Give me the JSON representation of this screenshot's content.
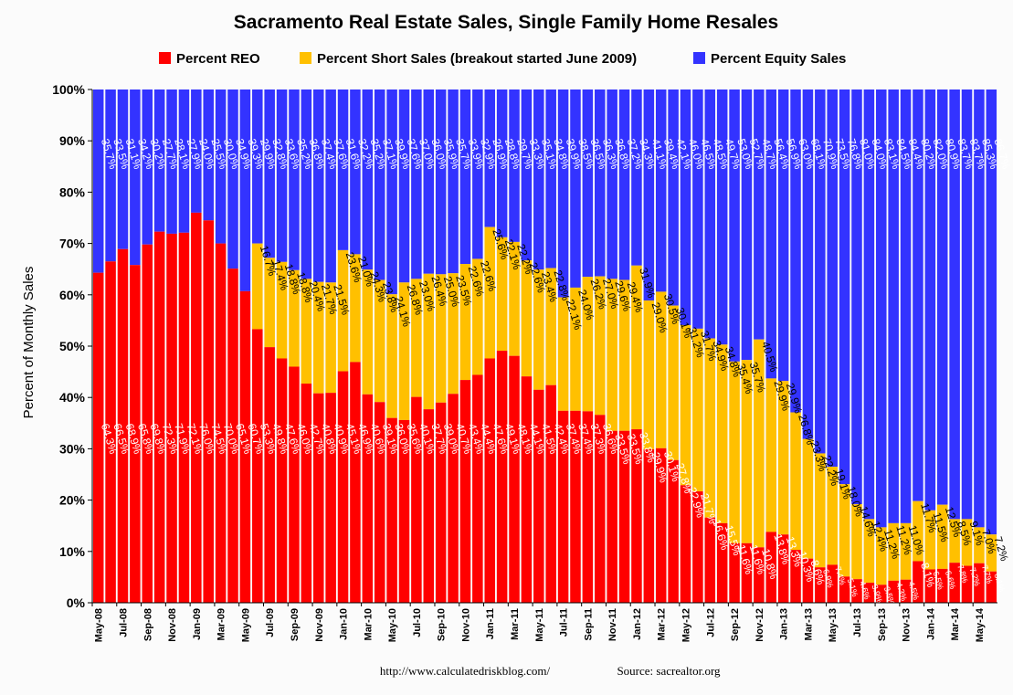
{
  "chart_data": {
    "type": "bar",
    "stacked": true,
    "title": "Sacramento Real Estate Sales, Single Family Home Resales",
    "ylabel": "Percent of Monthly Sales",
    "xlabel": "",
    "ylim": [
      0,
      100
    ],
    "yticks": [
      "0%",
      "10%",
      "20%",
      "30%",
      "40%",
      "50%",
      "60%",
      "70%",
      "80%",
      "90%",
      "100%"
    ],
    "legend_position": "top",
    "footer": {
      "url": "http://www.calculatedriskblog.com/",
      "source": "Source: sacrealtor.org"
    },
    "colors": {
      "reo": "#ff0000",
      "short": "#ffc000",
      "equity": "#3333ff"
    },
    "x_tick_labels": [
      "May-08",
      "Jul-08",
      "Sep-08",
      "Nov-08",
      "Jan-09",
      "Mar-09",
      "May-09",
      "Jul-09",
      "Sep-09",
      "Nov-09",
      "Jan-10",
      "Mar-10",
      "May-10",
      "Jul-10",
      "Sep-10",
      "Nov-10",
      "Jan-11",
      "Mar-11",
      "May-11",
      "Jul-11",
      "Sep-11",
      "Nov-11",
      "Jan-12",
      "Mar-12",
      "May-12",
      "Jul-12",
      "Sep-12",
      "Nov-12",
      "Jan-13",
      "Mar-13",
      "May-13",
      "Jul-13",
      "Sep-13",
      "Nov-13",
      "Jan-14",
      "Mar-14",
      "May-14"
    ],
    "categories": [
      "May-08",
      "Jun-08",
      "Jul-08",
      "Aug-08",
      "Sep-08",
      "Oct-08",
      "Nov-08",
      "Dec-08",
      "Jan-09",
      "Feb-09",
      "Mar-09",
      "Apr-09",
      "May-09",
      "Jun-09",
      "Jul-09",
      "Aug-09",
      "Sep-09",
      "Oct-09",
      "Nov-09",
      "Dec-09",
      "Jan-10",
      "Feb-10",
      "Mar-10",
      "Apr-10",
      "May-10",
      "Jun-10",
      "Jul-10",
      "Aug-10",
      "Sep-10",
      "Oct-10",
      "Nov-10",
      "Dec-10",
      "Jan-11",
      "Feb-11",
      "Mar-11",
      "Apr-11",
      "May-11",
      "Jun-11",
      "Jul-11",
      "Aug-11",
      "Sep-11",
      "Oct-11",
      "Nov-11",
      "Dec-11",
      "Jan-12",
      "Feb-12",
      "Mar-12",
      "Apr-12",
      "May-12",
      "Jun-12",
      "Jul-12",
      "Aug-12",
      "Sep-12",
      "Oct-12",
      "Nov-12",
      "Dec-12",
      "Jan-13",
      "Feb-13",
      "Mar-13",
      "Apr-13",
      "May-13",
      "Jun-13",
      "Jul-13",
      "Aug-13",
      "Sep-13",
      "Oct-13",
      "Nov-13",
      "Dec-13",
      "Jan-14",
      "Feb-14",
      "Mar-14",
      "Apr-14",
      "May-14",
      "Jun-14"
    ],
    "series": [
      {
        "name": "Percent REO",
        "key": "reo",
        "values": [
          64.3,
          66.5,
          68.9,
          65.8,
          69.8,
          72.3,
          71.9,
          72.1,
          76.0,
          74.5,
          70.0,
          65.1,
          60.7,
          53.3,
          49.8,
          47.6,
          46.0,
          42.7,
          40.8,
          40.9,
          45.1,
          46.9,
          40.6,
          39.1,
          36.0,
          35.6,
          40.1,
          37.7,
          39.0,
          40.7,
          43.4,
          44.4,
          47.6,
          49.1,
          48.1,
          44.1,
          41.5,
          42.4,
          37.4,
          37.4,
          37.3,
          36.6,
          33.5,
          33.5,
          33.8,
          29.9,
          30.1,
          27.8,
          22.9,
          21.7,
          16.6,
          15.5,
          11.6,
          11.6,
          10.8,
          13.8,
          13.3,
          10.3,
          8.6,
          6.9,
          7.4,
          5.1,
          4.6,
          3.9,
          3.5,
          4.3,
          4.5,
          8.1,
          6.5,
          6.6,
          7.8,
          7.2,
          7.7,
          6.1
        ]
      },
      {
        "name": "Percent Short Sales (breakout started June 2009)",
        "key": "short",
        "values": [
          null,
          null,
          null,
          null,
          null,
          null,
          null,
          null,
          null,
          null,
          null,
          null,
          null,
          16.7,
          17.4,
          18.8,
          18.8,
          20.4,
          21.7,
          21.5,
          23.6,
          21.0,
          24.3,
          23.8,
          24.1,
          26.8,
          23.0,
          26.4,
          25.0,
          23.5,
          22.6,
          22.6,
          25.6,
          22.1,
          22.2,
          22.6,
          23.4,
          22.8,
          22.1,
          24.0,
          26.2,
          27.0,
          29.6,
          29.4,
          31.9,
          29.0,
          30.5,
          30.1,
          31.2,
          31.7,
          34.9,
          34.8,
          35.4,
          35.7,
          40.5,
          29.9,
          29.9,
          26.8,
          23.3,
          22.2,
          19.1,
          18.0,
          14.6,
          12.4,
          11.2,
          11.2,
          11.0,
          11.7,
          11.5,
          12.5,
          8.5,
          9.1,
          7.0,
          7.2
        ]
      },
      {
        "name": "Percent Equity Sales",
        "key": "equity",
        "values": [
          35.7,
          33.5,
          31.1,
          34.2,
          30.2,
          27.7,
          28.1,
          27.9,
          24.0,
          25.5,
          30.0,
          34.9,
          39.3,
          29.9,
          32.8,
          33.6,
          35.2,
          36.8,
          37.4,
          37.6,
          31.6,
          32.2,
          35.2,
          37.1,
          39.9,
          37.6,
          37.0,
          36.0,
          35.9,
          35.7,
          33.9,
          32.9,
          26.9,
          28.8,
          29.7,
          33.3,
          35.1,
          34.8,
          39.9,
          38.5,
          36.5,
          36.3,
          36.8,
          37.2,
          34.3,
          41.1,
          39.4,
          42.1,
          46.0,
          46.5,
          48.5,
          49.7,
          53.0,
          52.7,
          48.7,
          56.4,
          56.9,
          63.0,
          68.1,
          70.9,
          73.5,
          76.8,
          81.0,
          84.0,
          83.1,
          84.5,
          84.4,
          80.2,
          82.0,
          80.9,
          83.7,
          83.7,
          85.3,
          86.7
        ]
      }
    ]
  }
}
